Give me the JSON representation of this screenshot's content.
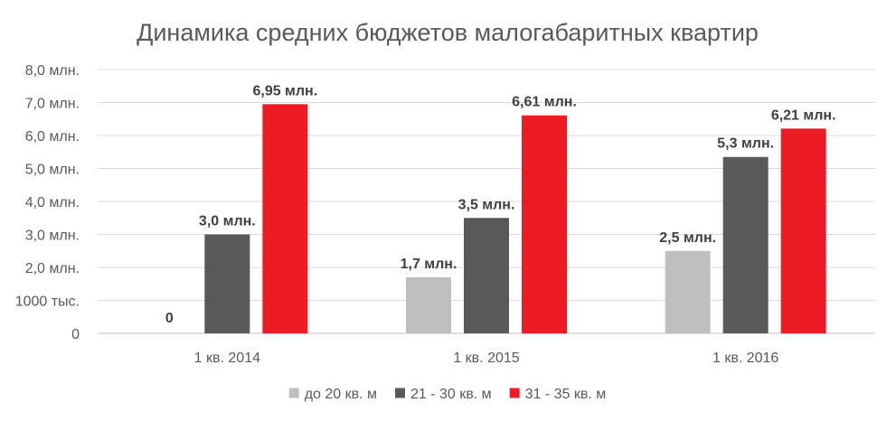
{
  "chart_data": {
    "type": "bar",
    "title": "Динамика средних бюджетов малогабаритных квартир",
    "xlabel": "",
    "ylabel": "",
    "categories": [
      "1 кв. 2014",
      "1 кв. 2015",
      "1 кв. 2016"
    ],
    "series": [
      {
        "name": "до 20 кв. м",
        "color": "#bfbfbf",
        "values": [
          0,
          1.7,
          2.5
        ],
        "labels": [
          "0",
          "1,7 млн.",
          "2,5 млн."
        ]
      },
      {
        "name": "21 - 30 кв. м",
        "color": "#595959",
        "values": [
          3.0,
          3.5,
          5.35
        ],
        "labels": [
          "3,0 млн.",
          "3,5 млн.",
          "5,3 млн."
        ]
      },
      {
        "name": "31 - 35 кв. м",
        "color": "#ed1c24",
        "values": [
          6.95,
          6.61,
          6.21
        ],
        "labels": [
          "6,95 млн.",
          "6,61 млн.",
          "6,21 млн."
        ]
      }
    ],
    "ylim": [
      0,
      8
    ],
    "yticks": [
      0,
      1,
      2,
      3,
      4,
      5,
      6,
      7,
      8
    ],
    "ytick_labels": [
      "0",
      "1000 тыс.",
      "2,0 млн.",
      "3,0 млн.",
      "4,0 млн.",
      "5,0 млн.",
      "6,0 млн.",
      "7,0 млн.",
      "8,0 млн."
    ],
    "grid": true,
    "gridline_color": "#d9d9d9",
    "legend_position": "bottom"
  }
}
